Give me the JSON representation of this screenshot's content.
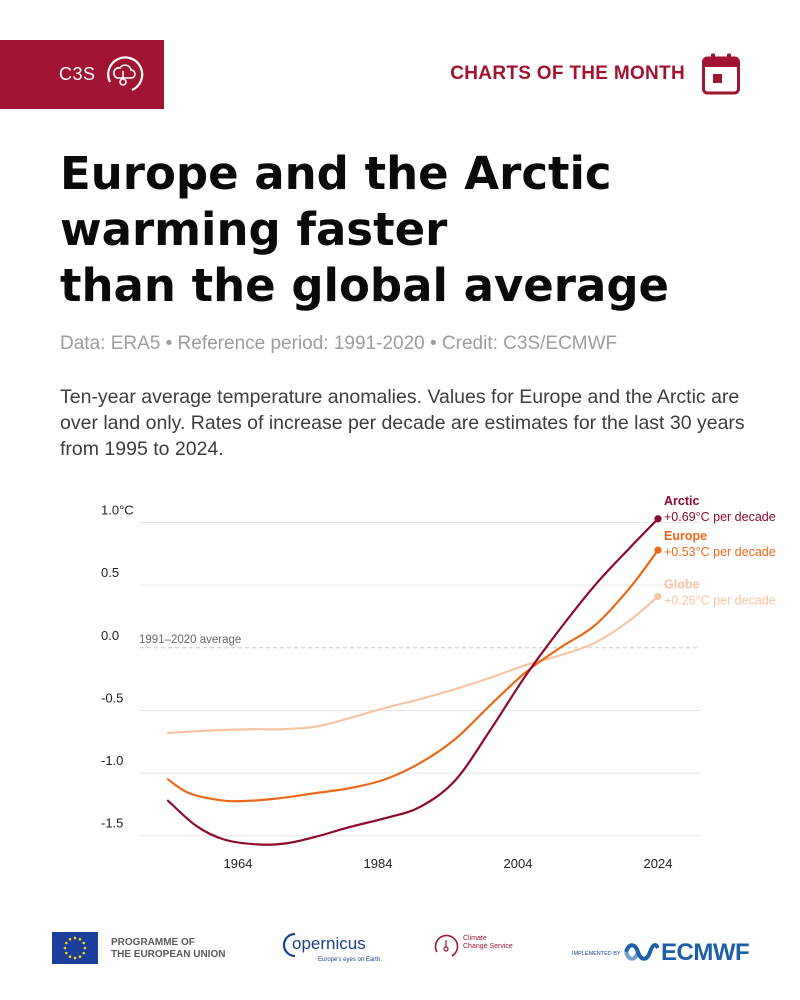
{
  "header": {
    "brand": "C3S",
    "section": "CHARTS OF THE MONTH"
  },
  "title_lines": [
    "Europe and the Arctic",
    "warming faster",
    "than the global average"
  ],
  "source_line": "Data: ERA5 • Reference period: 1991-2020 • Credit: C3S/ECMWF",
  "description": "Ten-year average temperature anomalies. Values for Europe and the Arctic are over land only. Rates of increase per decade are estimates for the last 30 years from 1995 to 2024.",
  "chart_data": {
    "type": "line",
    "ylim": [
      -1.55,
      1.1
    ],
    "xlim": [
      1950,
      2030
    ],
    "y_ticks": [
      {
        "value": 1.0,
        "label": "1.0°C"
      },
      {
        "value": 0.5,
        "label": "0.5"
      },
      {
        "value": 0.0,
        "label": "0.0"
      },
      {
        "value": -0.5,
        "label": "-0.5"
      },
      {
        "value": -1.0,
        "label": "-1.0"
      },
      {
        "value": -1.5,
        "label": "-1.5"
      }
    ],
    "x_ticks": [
      1964,
      1984,
      2004,
      2024
    ],
    "reference_line": {
      "value": 0.0,
      "label": "1991–2020 average"
    },
    "series": [
      {
        "name": "Globe",
        "rate_label": "+0.26°C per decade",
        "color": "#f6c4a2",
        "x": [
          1954,
          1960,
          1966,
          1970,
          1975,
          1980,
          1985,
          1990,
          1995,
          2000,
          2005,
          2010,
          2015,
          2020,
          2024
        ],
        "y": [
          -0.68,
          -0.66,
          -0.65,
          -0.65,
          -0.63,
          -0.56,
          -0.48,
          -0.41,
          -0.33,
          -0.24,
          -0.14,
          -0.06,
          0.04,
          0.22,
          0.41
        ]
      },
      {
        "name": "Europe",
        "rate_label": "+0.53°C per decade",
        "color": "#ea6a1a",
        "x": [
          1954,
          1957,
          1962,
          1966,
          1970,
          1975,
          1980,
          1985,
          1990,
          1995,
          2000,
          2005,
          2010,
          2015,
          2020,
          2024
        ],
        "y": [
          -1.05,
          -1.16,
          -1.22,
          -1.22,
          -1.2,
          -1.16,
          -1.12,
          -1.05,
          -0.92,
          -0.73,
          -0.46,
          -0.2,
          0.0,
          0.18,
          0.48,
          0.78
        ]
      },
      {
        "name": "Arctic",
        "rate_label": "+0.69°C per decade",
        "color": "#8b0a2e",
        "x": [
          1954,
          1958,
          1962,
          1967,
          1971,
          1975,
          1980,
          1985,
          1990,
          1995,
          2000,
          2005,
          2010,
          2015,
          2020,
          2024
        ],
        "y": [
          -1.22,
          -1.42,
          -1.53,
          -1.57,
          -1.56,
          -1.51,
          -1.43,
          -1.36,
          -1.27,
          -1.06,
          -0.66,
          -0.23,
          0.15,
          0.5,
          0.8,
          1.03
        ]
      }
    ]
  },
  "footer": {
    "eu_line1": "PROGRAMME OF",
    "eu_line2": "THE EUROPEAN UNION",
    "copernicus": "opernicus",
    "copernicus_tag": "Europe's eyes on Earth",
    "c3s_line1": "Climate",
    "c3s_line2": "Change Service",
    "implemented_by": "IMPLEMENTED BY",
    "ecmwf": "ECMWF"
  },
  "colors": {
    "brand": "#a01432",
    "grid": "#e6e6e6",
    "reference": "#c8c8c8"
  }
}
